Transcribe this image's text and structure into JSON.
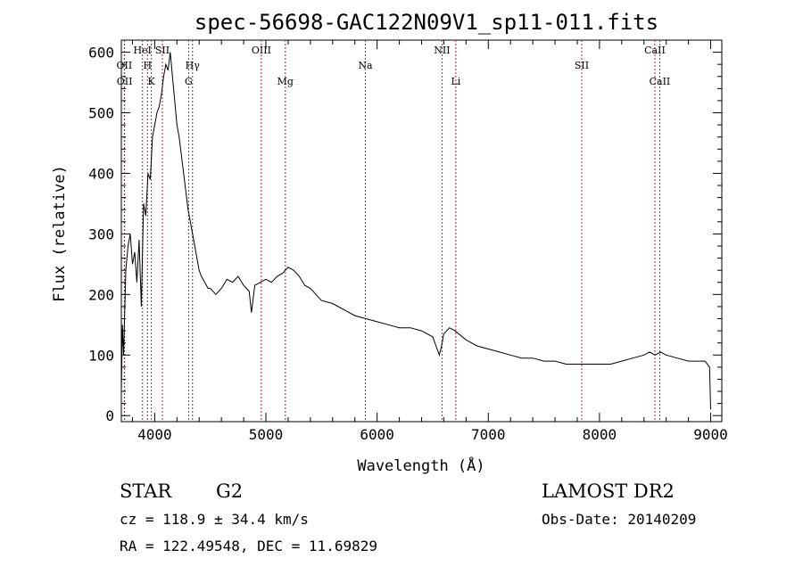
{
  "chart_data": {
    "type": "line",
    "title": "spec-56698-GAC122N09V1_sp11-011.fits",
    "xlabel": "Wavelength (Å)",
    "ylabel": "Flux (relative)",
    "xlim": [
      3700,
      9100
    ],
    "ylim": [
      -10,
      620
    ],
    "x_ticks": [
      4000,
      5000,
      6000,
      7000,
      8000,
      9000
    ],
    "y_ticks": [
      0,
      100,
      200,
      300,
      400,
      500,
      600
    ],
    "grid": false,
    "series": [
      {
        "x": [
          3700,
          3710,
          3720,
          3740,
          3760,
          3780,
          3800,
          3820,
          3840,
          3860,
          3880,
          3900,
          3920,
          3940,
          3960,
          3980,
          4000,
          4020,
          4040,
          4060,
          4080,
          4100,
          4120,
          4140,
          4160,
          4180,
          4200,
          4220,
          4240,
          4260,
          4280,
          4300,
          4320,
          4340,
          4360,
          4380,
          4400,
          4420,
          4450,
          4480,
          4500,
          4550,
          4600,
          4650,
          4700,
          4750,
          4800,
          4850,
          4870,
          4900,
          4950,
          5000,
          5050,
          5100,
          5150,
          5200,
          5250,
          5300,
          5350,
          5400,
          5450,
          5500,
          5600,
          5700,
          5800,
          5900,
          6000,
          6100,
          6200,
          6300,
          6400,
          6500,
          6560,
          6580,
          6600,
          6650,
          6700,
          6800,
          6900,
          7000,
          7100,
          7200,
          7300,
          7400,
          7500,
          7600,
          7700,
          7800,
          7900,
          8000,
          8100,
          8200,
          8300,
          8400,
          8450,
          8500,
          8550,
          8600,
          8700,
          8800,
          8900,
          8950,
          8990,
          9000
        ],
        "y": [
          40,
          150,
          100,
          240,
          280,
          300,
          250,
          270,
          220,
          290,
          180,
          350,
          330,
          400,
          390,
          460,
          480,
          500,
          510,
          530,
          560,
          580,
          570,
          600,
          560,
          520,
          480,
          460,
          430,
          400,
          370,
          340,
          320,
          300,
          280,
          260,
          240,
          230,
          220,
          210,
          210,
          200,
          210,
          225,
          220,
          230,
          215,
          205,
          170,
          215,
          220,
          225,
          220,
          230,
          235,
          245,
          240,
          230,
          215,
          210,
          200,
          190,
          185,
          175,
          165,
          160,
          155,
          150,
          145,
          145,
          140,
          130,
          100,
          115,
          135,
          145,
          140,
          125,
          115,
          110,
          105,
          100,
          95,
          95,
          90,
          90,
          85,
          85,
          85,
          85,
          85,
          90,
          95,
          100,
          105,
          100,
          105,
          100,
          95,
          90,
          90,
          90,
          80,
          10
        ]
      }
    ],
    "lines": [
      {
        "x": 3890,
        "label": "HeI",
        "row": 0
      },
      {
        "x": 3935,
        "label": "H",
        "row": 1
      },
      {
        "x": 3727,
        "label": "OII",
        "row": 1
      },
      {
        "x": 3729,
        "label": "OII",
        "row": 2
      },
      {
        "x": 3970,
        "label": "K",
        "row": 2
      },
      {
        "x": 4069,
        "label": "SII",
        "row": 0
      },
      {
        "x": 4340,
        "label": "Hγ",
        "row": 1
      },
      {
        "x": 4305,
        "label": "G",
        "row": 2
      },
      {
        "x": 4959,
        "label": "OIII",
        "row": 0
      },
      {
        "x": 5175,
        "label": "Mg",
        "row": 2
      },
      {
        "x": 5894,
        "label": "Na",
        "row": 1
      },
      {
        "x": 6584,
        "label": "NII",
        "row": 0
      },
      {
        "x": 6708,
        "label": "Li",
        "row": 2
      },
      {
        "x": 7840,
        "label": "SII",
        "row": 1
      },
      {
        "x": 8498,
        "label": "CaII",
        "row": 0
      },
      {
        "x": 8542,
        "label": "CaII",
        "row": 2
      }
    ]
  },
  "info": {
    "object_class": "STAR",
    "subclass": "G2",
    "survey": "LAMOST DR2",
    "cz": "cz = 118.9 ± 34.4 km/s",
    "obs_date": "Obs-Date: 20140209",
    "coords": "RA = 122.49548, DEC =  11.69829"
  }
}
